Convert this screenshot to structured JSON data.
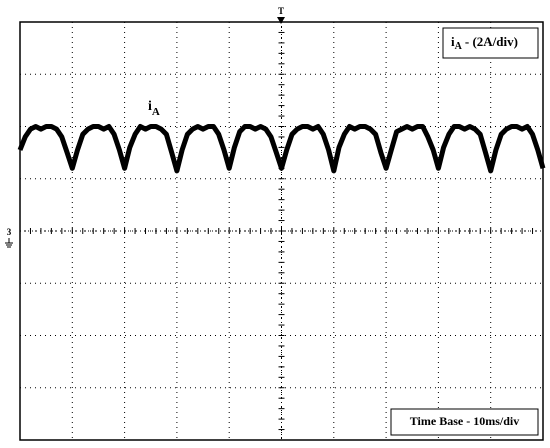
{
  "chart_data": {
    "type": "line",
    "trigger_marker": "T",
    "ground_marker": "3",
    "trace_label": {
      "symbol": "i",
      "subscript": "A"
    },
    "scale_label": {
      "symbol": "i",
      "subscript": "A",
      "text": "- (2A/div)"
    },
    "time_base_label": "Time Base - 10ms/div",
    "xlim": [
      0,
      100
    ],
    "ylim": [
      -8,
      8
    ],
    "xticks": [
      0,
      10,
      20,
      30,
      40,
      50,
      60,
      70,
      80,
      90,
      100
    ],
    "yticks": [
      -8,
      -6,
      -4,
      -2,
      0,
      2,
      4,
      6,
      8
    ],
    "grid": true,
    "x": [
      0,
      1,
      2,
      3,
      4,
      5,
      6,
      7,
      8,
      9,
      10,
      11,
      12,
      13,
      14,
      15,
      16,
      17,
      18,
      19,
      20,
      21,
      22,
      23,
      24,
      25,
      26,
      27,
      28,
      29,
      30,
      31,
      32,
      33,
      34,
      35,
      36,
      37,
      38,
      39,
      40,
      41,
      42,
      43,
      44,
      45,
      46,
      47,
      48,
      49,
      50,
      51,
      52,
      53,
      54,
      55,
      56,
      57,
      58,
      59,
      60,
      61,
      62,
      63,
      64,
      65,
      66,
      67,
      68,
      69,
      70,
      71,
      72,
      73,
      74,
      75,
      76,
      77,
      78,
      79,
      80,
      81,
      82,
      83,
      84,
      85,
      86,
      87,
      88,
      89,
      90,
      91,
      92,
      93,
      94,
      95,
      96,
      97,
      98,
      99,
      100
    ],
    "series": [
      {
        "color": "#000000",
        "values": [
          3.1,
          3.6,
          3.9,
          4.0,
          3.9,
          4.0,
          4.0,
          3.9,
          3.6,
          3.0,
          2.4,
          3.1,
          3.7,
          3.9,
          4.0,
          4.0,
          3.9,
          4.0,
          3.7,
          3.1,
          2.4,
          3.2,
          3.7,
          4.0,
          3.9,
          4.0,
          4.0,
          3.9,
          3.7,
          3.0,
          2.3,
          3.1,
          3.7,
          3.9,
          4.0,
          3.9,
          4.0,
          4.0,
          3.7,
          3.1,
          2.4,
          3.2,
          3.8,
          4.0,
          4.0,
          3.9,
          4.0,
          3.9,
          3.6,
          3.0,
          2.4,
          3.1,
          3.7,
          3.9,
          4.0,
          4.0,
          3.9,
          4.0,
          3.7,
          3.1,
          2.3,
          3.2,
          3.7,
          4.0,
          3.9,
          4.0,
          4.0,
          3.9,
          3.7,
          3.0,
          2.4,
          3.1,
          3.8,
          3.9,
          4.0,
          3.9,
          4.0,
          4.0,
          3.6,
          3.1,
          2.4,
          3.2,
          3.7,
          4.0,
          4.0,
          3.9,
          4.0,
          3.9,
          3.7,
          3.0,
          2.3,
          3.1,
          3.7,
          3.9,
          4.0,
          4.0,
          3.9,
          4.0,
          3.7,
          3.1,
          2.4
        ]
      }
    ]
  }
}
